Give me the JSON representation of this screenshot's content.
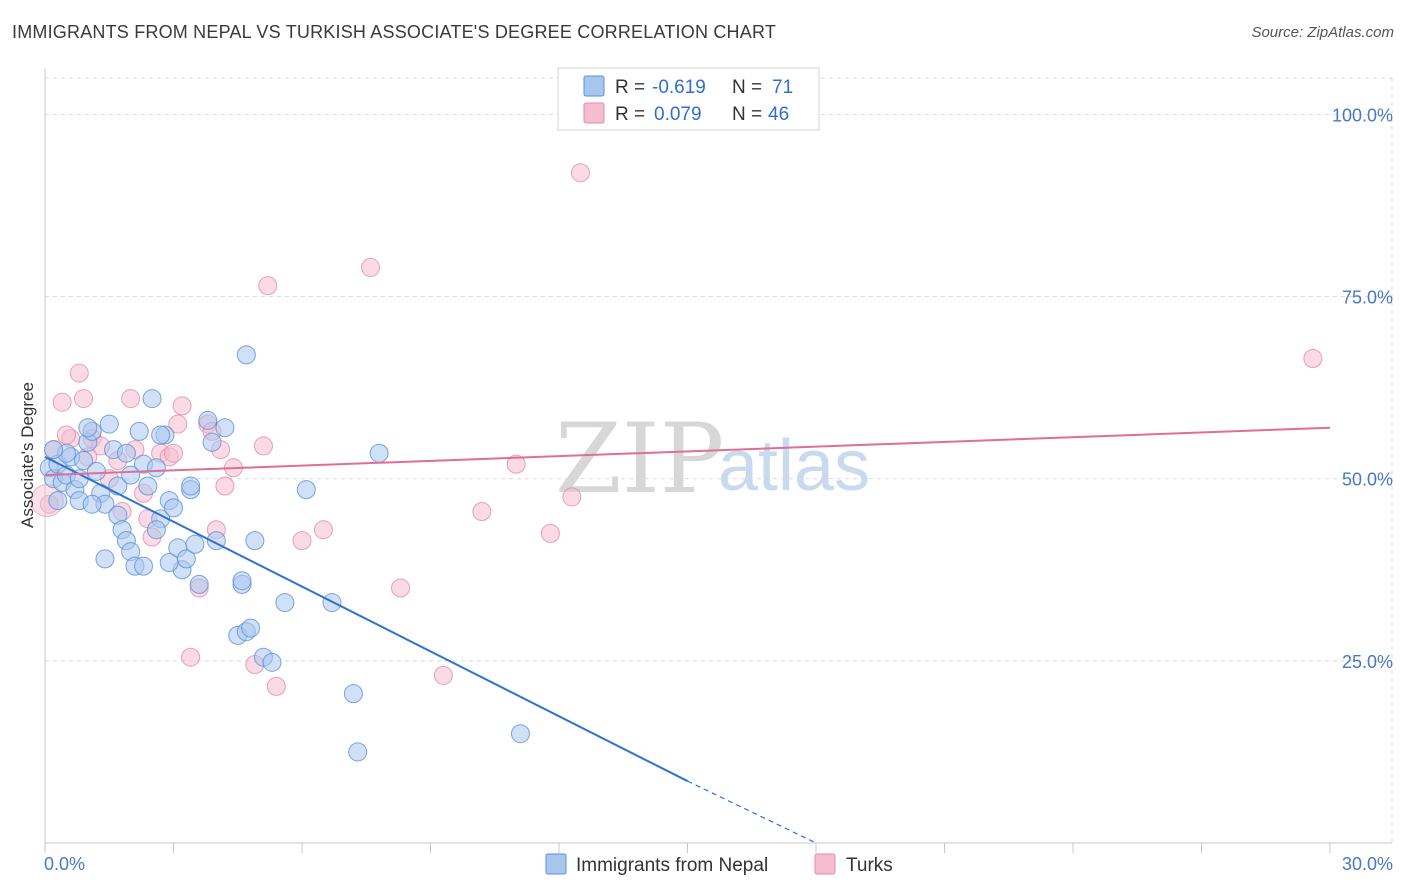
{
  "header": {
    "title": "IMMIGRANTS FROM NEPAL VS TURKISH ASSOCIATE'S DEGREE CORRELATION CHART",
    "source": "Source: ZipAtlas.com"
  },
  "watermark": {
    "part1": "ZIP",
    "part2": "atlas"
  },
  "colors": {
    "nepal_fill": "#a9c6ef",
    "nepal_stroke": "#5b8fd8",
    "nepal_line": "#2f72d0",
    "turks_fill": "#f5bdd0",
    "turks_stroke": "#e48aa8",
    "turks_line": "#e06e96",
    "grid": "#d9d9d9",
    "tick_text": "#4a78c2"
  },
  "legend": {
    "rows": [
      {
        "r_label": "R =",
        "r_value": "-0.619",
        "n_label": "N =",
        "n_value": "71"
      },
      {
        "r_label": "R =",
        "r_value": "0.079",
        "n_label": "N =",
        "n_value": "46"
      }
    ]
  },
  "chart_data": {
    "type": "scatter",
    "title": "IMMIGRANTS FROM NEPAL VS TURKISH ASSOCIATE'S DEGREE CORRELATION CHART",
    "xlabel": "",
    "ylabel": "Associate's Degree",
    "xlim": [
      0,
      30
    ],
    "ylim": [
      0,
      105
    ],
    "x_tick_labels": [
      "0.0%",
      "30.0%"
    ],
    "y_ticks": [
      25,
      50,
      75,
      100
    ],
    "y_tick_labels": [
      "25.0%",
      "50.0%",
      "75.0%",
      "100.0%"
    ],
    "grid": true,
    "legend_position": "top-center",
    "series": [
      {
        "name": "Immigrants from Nepal",
        "R": -0.619,
        "N": 71,
        "trend": {
          "x0": 0.0,
          "y0": 53.0,
          "x1": 15.0,
          "y1": 8.5,
          "dashed_to_x": 18.0,
          "dashed_to_y": 0.0
        },
        "points": [
          [
            0.1,
            51.5
          ],
          [
            0.2,
            50.0
          ],
          [
            0.3,
            52.0
          ],
          [
            0.4,
            49.5
          ],
          [
            0.5,
            50.5
          ],
          [
            0.6,
            53.0
          ],
          [
            0.7,
            48.5
          ],
          [
            0.8,
            47.0
          ],
          [
            0.9,
            52.5
          ],
          [
            1.0,
            55.0
          ],
          [
            1.1,
            56.5
          ],
          [
            1.2,
            51.0
          ],
          [
            1.3,
            48.0
          ],
          [
            1.4,
            46.5
          ],
          [
            1.5,
            57.5
          ],
          [
            1.6,
            54.0
          ],
          [
            1.7,
            45.0
          ],
          [
            1.8,
            43.0
          ],
          [
            1.9,
            41.5
          ],
          [
            2.0,
            40.0
          ],
          [
            2.1,
            38.0
          ],
          [
            2.2,
            56.5
          ],
          [
            2.3,
            52.0
          ],
          [
            2.4,
            49.0
          ],
          [
            2.5,
            61.0
          ],
          [
            2.6,
            51.5
          ],
          [
            2.7,
            44.5
          ],
          [
            2.8,
            56.0
          ],
          [
            2.9,
            47.0
          ],
          [
            3.0,
            46.0
          ],
          [
            3.1,
            40.5
          ],
          [
            3.2,
            37.5
          ],
          [
            3.3,
            39.0
          ],
          [
            3.4,
            48.5
          ],
          [
            3.5,
            41.0
          ],
          [
            3.6,
            35.5
          ],
          [
            3.8,
            58.0
          ],
          [
            3.9,
            55.0
          ],
          [
            4.0,
            41.5
          ],
          [
            4.2,
            57.0
          ],
          [
            4.5,
            28.5
          ],
          [
            4.6,
            35.5
          ],
          [
            4.7,
            29.0
          ],
          [
            4.8,
            29.5
          ],
          [
            4.9,
            41.5
          ],
          [
            5.1,
            25.5
          ],
          [
            5.3,
            24.8
          ],
          [
            5.6,
            33.0
          ],
          [
            6.1,
            48.5
          ],
          [
            6.7,
            33.0
          ],
          [
            7.2,
            20.5
          ],
          [
            7.3,
            12.5
          ],
          [
            7.8,
            53.5
          ],
          [
            11.1,
            15.0
          ],
          [
            0.3,
            47.0
          ],
          [
            0.5,
            53.5
          ],
          [
            0.8,
            50.0
          ],
          [
            1.1,
            46.5
          ],
          [
            1.4,
            39.0
          ],
          [
            1.7,
            49.0
          ],
          [
            2.0,
            50.5
          ],
          [
            2.3,
            38.0
          ],
          [
            2.6,
            43.0
          ],
          [
            2.9,
            38.5
          ],
          [
            4.7,
            67.0
          ],
          [
            1.0,
            57.0
          ],
          [
            3.4,
            49.0
          ],
          [
            0.2,
            54.0
          ],
          [
            1.9,
            53.5
          ],
          [
            2.7,
            56.0
          ],
          [
            4.6,
            36.0
          ]
        ]
      },
      {
        "name": "Turks",
        "R": 0.079,
        "N": 46,
        "trend": {
          "x0": 0.0,
          "y0": 50.5,
          "x1": 30.0,
          "y1": 57.0
        },
        "points": [
          [
            0.1,
            46.5
          ],
          [
            0.2,
            54.0
          ],
          [
            0.4,
            60.5
          ],
          [
            0.6,
            55.5
          ],
          [
            0.8,
            64.5
          ],
          [
            0.9,
            61.0
          ],
          [
            1.1,
            55.5
          ],
          [
            1.3,
            54.5
          ],
          [
            1.5,
            50.0
          ],
          [
            1.7,
            52.5
          ],
          [
            1.8,
            45.5
          ],
          [
            2.0,
            61.0
          ],
          [
            2.1,
            54.0
          ],
          [
            2.3,
            48.0
          ],
          [
            2.5,
            42.0
          ],
          [
            2.7,
            53.5
          ],
          [
            2.9,
            53.0
          ],
          [
            3.1,
            57.5
          ],
          [
            3.2,
            60.0
          ],
          [
            3.4,
            25.5
          ],
          [
            3.6,
            35.0
          ],
          [
            3.8,
            57.5
          ],
          [
            3.9,
            56.5
          ],
          [
            4.0,
            43.0
          ],
          [
            4.1,
            54.0
          ],
          [
            4.2,
            49.0
          ],
          [
            4.4,
            51.5
          ],
          [
            4.9,
            24.5
          ],
          [
            5.1,
            54.5
          ],
          [
            5.2,
            76.5
          ],
          [
            5.4,
            21.5
          ],
          [
            6.0,
            41.5
          ],
          [
            6.5,
            43.0
          ],
          [
            7.6,
            79.0
          ],
          [
            8.3,
            35.0
          ],
          [
            9.3,
            23.0
          ],
          [
            10.2,
            45.5
          ],
          [
            11.0,
            52.0
          ],
          [
            11.8,
            42.5
          ],
          [
            12.3,
            47.5
          ],
          [
            12.5,
            92.0
          ],
          [
            29.6,
            66.5
          ],
          [
            0.5,
            56.0
          ],
          [
            1.0,
            53.0
          ],
          [
            2.4,
            44.5
          ],
          [
            3.0,
            53.5
          ]
        ]
      }
    ]
  },
  "bottom_legend": {
    "items": [
      "Immigrants from Nepal",
      "Turks"
    ]
  }
}
